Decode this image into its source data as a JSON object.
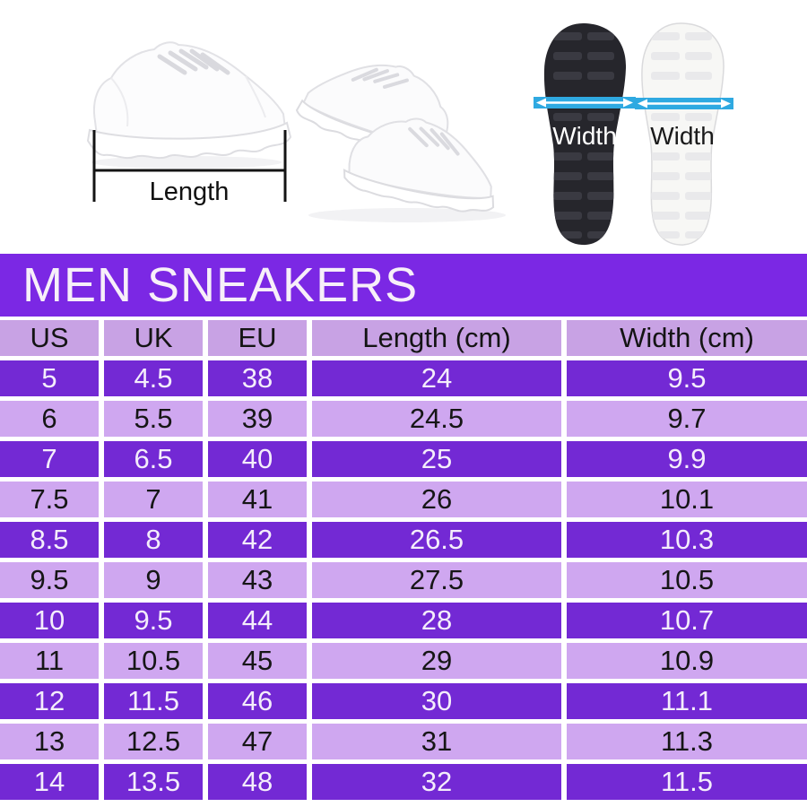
{
  "hero": {
    "length_label": "Length",
    "sole_black_width_label": "Width",
    "sole_white_width_label": "Width",
    "arrow_band_color": "#2FA9E1",
    "measure_line_color": "#141414"
  },
  "banner": {
    "title": "MEN SNEAKERS",
    "bg_color": "#7B28E4",
    "text_color": "#F7EFF9"
  },
  "size_table": {
    "columns": [
      "US",
      "UK",
      "EU",
      "Length (cm)",
      "Width (cm)"
    ],
    "rows": [
      [
        "5",
        "4.5",
        "38",
        "24",
        "9.5"
      ],
      [
        "6",
        "5.5",
        "39",
        "24.5",
        "9.7"
      ],
      [
        "7",
        "6.5",
        "40",
        "25",
        "9.9"
      ],
      [
        "7.5",
        "7",
        "41",
        "26",
        "10.1"
      ],
      [
        "8.5",
        "8",
        "42",
        "26.5",
        "10.3"
      ],
      [
        "9.5",
        "9",
        "43",
        "27.5",
        "10.5"
      ],
      [
        "10",
        "9.5",
        "44",
        "28",
        "10.7"
      ],
      [
        "11",
        "10.5",
        "45",
        "29",
        "10.9"
      ],
      [
        "12",
        "11.5",
        "46",
        "30",
        "11.1"
      ],
      [
        "13",
        "12.5",
        "47",
        "31",
        "11.3"
      ],
      [
        "14",
        "13.5",
        "48",
        "32",
        "11.5"
      ]
    ],
    "colors": {
      "row_purple": "#7329D4",
      "row_lavender": "#CFA7F0",
      "header_lavender": "#C8A2E4",
      "separator": "#FFFFFF"
    }
  },
  "chart_data": {
    "type": "table",
    "title": "MEN SNEAKERS",
    "columns": [
      "US",
      "UK",
      "EU",
      "Length (cm)",
      "Width (cm)"
    ],
    "rows": [
      [
        "5",
        "4.5",
        "38",
        "24",
        "9.5"
      ],
      [
        "6",
        "5.5",
        "39",
        "24.5",
        "9.7"
      ],
      [
        "7",
        "6.5",
        "40",
        "25",
        "9.9"
      ],
      [
        "7.5",
        "7",
        "41",
        "26",
        "10.1"
      ],
      [
        "8.5",
        "8",
        "42",
        "26.5",
        "10.3"
      ],
      [
        "9.5",
        "9",
        "43",
        "27.5",
        "10.5"
      ],
      [
        "10",
        "9.5",
        "44",
        "28",
        "10.7"
      ],
      [
        "11",
        "10.5",
        "45",
        "29",
        "10.9"
      ],
      [
        "12",
        "11.5",
        "46",
        "30",
        "11.1"
      ],
      [
        "13",
        "12.5",
        "47",
        "31",
        "11.3"
      ],
      [
        "14",
        "13.5",
        "48",
        "32",
        "11.5"
      ]
    ]
  }
}
